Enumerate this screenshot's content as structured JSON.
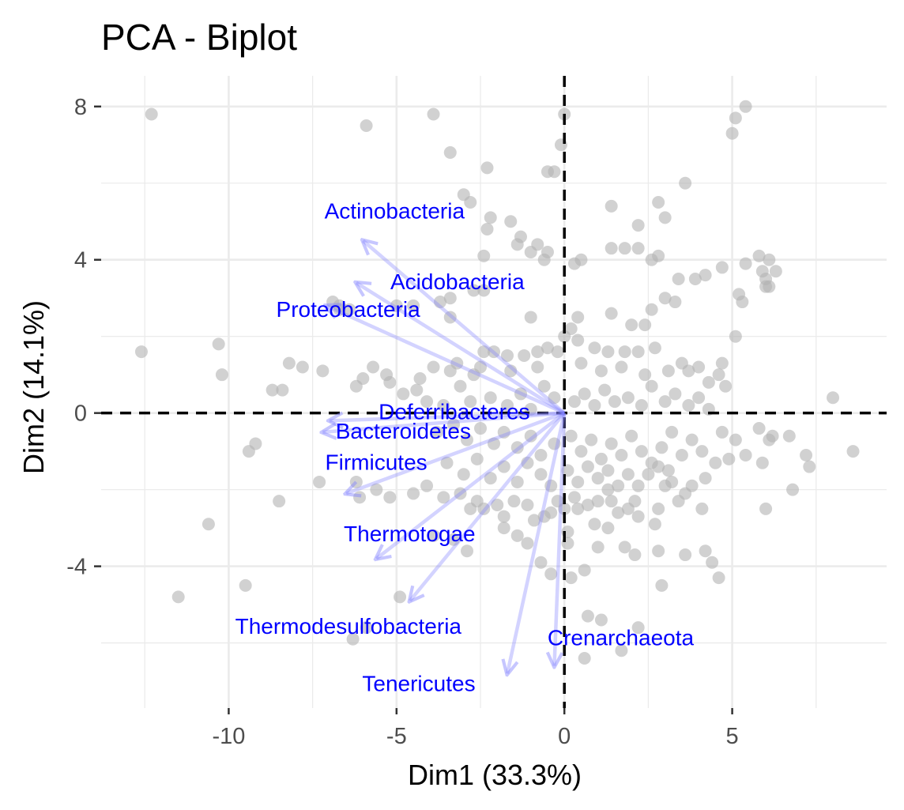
{
  "chart_data": {
    "type": "scatter",
    "title": "PCA - Biplot",
    "xlabel": "Dim1 (33.3%)",
    "ylabel": "Dim2 (14.1%)",
    "xlim": [
      -13.8,
      9.6
    ],
    "ylim": [
      -7.7,
      8.8
    ],
    "x_ticks": [
      -10,
      -5,
      0,
      5
    ],
    "y_ticks": [
      -4,
      0,
      4,
      8
    ],
    "x_tick_labels": [
      "-10",
      "-5",
      "0",
      "5"
    ],
    "y_tick_labels": [
      "-4",
      "0",
      "4",
      "8"
    ],
    "grid": true,
    "reference_lines": {
      "x": 0,
      "y": 0,
      "style": "dashed"
    },
    "colors": {
      "points": "#b3b3b3",
      "arrows": "#8080ff",
      "variable_labels": "#0000ff",
      "grid": "#ebebeb"
    },
    "variables": [
      {
        "name": "Actinobacteria",
        "x": -6.0,
        "y": 4.5
      },
      {
        "name": "Acidobacteria",
        "x": -6.2,
        "y": 3.4
      },
      {
        "name": "Proteobacteria",
        "x": -7.1,
        "y": 2.8
      },
      {
        "name": "Bacteroidetes",
        "x": -7.2,
        "y": -0.5
      },
      {
        "name": "Deferribacteres",
        "x": -7.0,
        "y": -0.2
      },
      {
        "name": "Firmicutes",
        "x": -6.5,
        "y": -2.1
      },
      {
        "name": "Thermotogae",
        "x": -5.6,
        "y": -3.8
      },
      {
        "name": "Thermodesulfobacteria",
        "x": -4.6,
        "y": -4.9
      },
      {
        "name": "Tenericutes",
        "x": -1.7,
        "y": -6.8
      },
      {
        "name": "Crenarchaeota",
        "x": -0.3,
        "y": -6.6
      }
    ],
    "points": [
      [
        -12.3,
        7.8
      ],
      [
        -5.9,
        7.5
      ],
      [
        -3.9,
        7.8
      ],
      [
        -3.4,
        6.8
      ],
      [
        -2.3,
        6.4
      ],
      [
        -0.5,
        6.3
      ],
      [
        -0.3,
        6.3
      ],
      [
        0.0,
        7.8
      ],
      [
        -0.1,
        7.0
      ],
      [
        5.1,
        7.7
      ],
      [
        5.4,
        8.0
      ],
      [
        5.0,
        7.3
      ],
      [
        3.6,
        6.0
      ],
      [
        1.4,
        5.4
      ],
      [
        2.8,
        5.5
      ],
      [
        3.0,
        5.1
      ],
      [
        2.2,
        4.9
      ],
      [
        -3.0,
        5.7
      ],
      [
        -2.8,
        5.5
      ],
      [
        -2.2,
        5.1
      ],
      [
        -1.6,
        5.0
      ],
      [
        -2.3,
        4.8
      ],
      [
        -1.3,
        4.6
      ],
      [
        -1.4,
        4.4
      ],
      [
        -1.0,
        4.2
      ],
      [
        -0.8,
        4.4
      ],
      [
        -0.5,
        4.2
      ],
      [
        -0.6,
        4.0
      ],
      [
        0.5,
        4.0
      ],
      [
        0.3,
        3.9
      ],
      [
        1.4,
        4.3
      ],
      [
        1.8,
        4.3
      ],
      [
        2.2,
        4.3
      ],
      [
        2.6,
        4.0
      ],
      [
        2.8,
        4.1
      ],
      [
        3.4,
        3.5
      ],
      [
        3.9,
        3.5
      ],
      [
        4.2,
        3.6
      ],
      [
        4.7,
        3.8
      ],
      [
        5.4,
        3.9
      ],
      [
        5.8,
        4.1
      ],
      [
        6.1,
        4.0
      ],
      [
        5.9,
        3.7
      ],
      [
        6.0,
        3.5
      ],
      [
        6.3,
        3.7
      ],
      [
        6.0,
        3.3
      ],
      [
        5.2,
        3.1
      ],
      [
        5.3,
        2.9
      ],
      [
        -4.5,
        2.8
      ],
      [
        -5.0,
        2.8
      ],
      [
        -3.4,
        3.0
      ],
      [
        -2.7,
        3.2
      ],
      [
        -2.4,
        3.2
      ],
      [
        -3.7,
        2.9
      ],
      [
        -1.0,
        2.5
      ],
      [
        -6.7,
        2.8
      ],
      [
        -6.9,
        2.9
      ],
      [
        -6.7,
        2.7
      ],
      [
        -6.4,
        2.7
      ],
      [
        -12.6,
        1.6
      ],
      [
        -10.3,
        1.8
      ],
      [
        -10.2,
        1.0
      ],
      [
        -8.2,
        1.3
      ],
      [
        -7.8,
        1.2
      ],
      [
        -7.2,
        1.1
      ],
      [
        -6.0,
        0.9
      ],
      [
        -6.2,
        0.7
      ],
      [
        -8.7,
        0.6
      ],
      [
        -8.4,
        0.6
      ],
      [
        -5.7,
        1.2
      ],
      [
        -5.3,
        1.0
      ],
      [
        -5.2,
        0.8
      ],
      [
        -4.4,
        0.6
      ],
      [
        -3.4,
        1.1
      ],
      [
        -3.2,
        1.3
      ],
      [
        -3.1,
        0.7
      ],
      [
        -2.5,
        1.2
      ],
      [
        -2.4,
        1.6
      ],
      [
        -2.1,
        1.6
      ],
      [
        -1.7,
        1.5
      ],
      [
        -1.2,
        1.5
      ],
      [
        -0.8,
        1.6
      ],
      [
        -0.5,
        1.7
      ],
      [
        -0.2,
        1.6
      ],
      [
        0.0,
        2.0
      ],
      [
        0.4,
        1.9
      ],
      [
        0.9,
        1.7
      ],
      [
        1.3,
        1.6
      ],
      [
        1.8,
        1.6
      ],
      [
        2.2,
        1.6
      ],
      [
        2.7,
        1.7
      ],
      [
        2.0,
        2.3
      ],
      [
        2.4,
        2.3
      ],
      [
        2.6,
        2.7
      ],
      [
        3.0,
        3.0
      ],
      [
        3.3,
        2.9
      ],
      [
        3.5,
        1.3
      ],
      [
        3.7,
        1.1
      ],
      [
        4.0,
        1.2
      ],
      [
        4.6,
        1.0
      ],
      [
        4.7,
        1.3
      ],
      [
        4.8,
        0.7
      ],
      [
        5.1,
        2.0
      ],
      [
        6.1,
        3.3
      ],
      [
        8.0,
        0.4
      ],
      [
        8.6,
        -1.0
      ],
      [
        7.2,
        -1.1
      ],
      [
        7.3,
        -1.4
      ],
      [
        6.8,
        -2.0
      ],
      [
        6.7,
        -0.6
      ],
      [
        6.1,
        -0.7
      ],
      [
        5.8,
        -0.4
      ],
      [
        6.2,
        -0.6
      ],
      [
        5.9,
        -1.3
      ],
      [
        6.0,
        -2.5
      ],
      [
        5.4,
        -1.1
      ],
      [
        5.1,
        -0.7
      ],
      [
        4.7,
        -0.5
      ],
      [
        4.9,
        -1.2
      ],
      [
        4.5,
        -1.3
      ],
      [
        4.2,
        -1.7
      ],
      [
        4.1,
        -2.5
      ],
      [
        3.8,
        -1.9
      ],
      [
        3.6,
        -2.1
      ],
      [
        3.4,
        -2.3
      ],
      [
        3.2,
        -1.8
      ],
      [
        3.0,
        -1.9
      ],
      [
        2.8,
        -2.5
      ],
      [
        2.7,
        -2.9
      ],
      [
        2.2,
        -2.7
      ],
      [
        2.1,
        -2.3
      ],
      [
        1.9,
        -2.5
      ],
      [
        1.6,
        -2.6
      ],
      [
        1.4,
        -2.3
      ],
      [
        1.3,
        -2.0
      ],
      [
        1.0,
        -2.3
      ],
      [
        0.9,
        -2.9
      ],
      [
        0.7,
        -2.4
      ],
      [
        0.4,
        -2.5
      ],
      [
        0.3,
        -2.2
      ],
      [
        0.0,
        -2.5
      ],
      [
        -0.2,
        -2.3
      ],
      [
        -0.4,
        -2.6
      ],
      [
        -0.6,
        -2.7
      ],
      [
        -0.9,
        -2.8
      ],
      [
        -1.1,
        -2.4
      ],
      [
        -1.5,
        -2.3
      ],
      [
        -1.8,
        -2.7
      ],
      [
        -2.0,
        -2.4
      ],
      [
        -2.4,
        -2.5
      ],
      [
        -2.6,
        -2.3
      ],
      [
        -2.8,
        -2.5
      ],
      [
        -3.1,
        -2.1
      ],
      [
        -3.6,
        -2.2
      ],
      [
        -4.1,
        -1.9
      ],
      [
        -4.5,
        -2.1
      ],
      [
        -5.2,
        -2.2
      ],
      [
        -5.6,
        -2.0
      ],
      [
        -6.1,
        -2.2
      ],
      [
        -6.2,
        -1.8
      ],
      [
        -7.3,
        -1.8
      ],
      [
        -9.2,
        -0.8
      ],
      [
        -9.4,
        -1.0
      ],
      [
        -8.5,
        -2.3
      ],
      [
        -9.5,
        -4.5
      ],
      [
        -10.6,
        -2.9
      ],
      [
        -11.5,
        -4.8
      ],
      [
        -5.9,
        -5.6
      ],
      [
        -6.3,
        -5.9
      ],
      [
        -4.9,
        -4.8
      ],
      [
        -3.9,
        -3.2
      ],
      [
        -3.3,
        -3.3
      ],
      [
        -2.9,
        -3.6
      ],
      [
        -1.8,
        -3.0
      ],
      [
        -1.4,
        -3.2
      ],
      [
        -1.1,
        -3.4
      ],
      [
        -0.7,
        -3.9
      ],
      [
        -0.4,
        -4.2
      ],
      [
        0.1,
        -3.1
      ],
      [
        0.1,
        -3.4
      ],
      [
        0.2,
        -4.3
      ],
      [
        0.6,
        -4.1
      ],
      [
        1.3,
        -3.0
      ],
      [
        1.8,
        -3.5
      ],
      [
        2.1,
        -3.7
      ],
      [
        1.0,
        -3.5
      ],
      [
        0.7,
        -5.3
      ],
      [
        1.1,
        -5.4
      ],
      [
        0.6,
        -6.4
      ],
      [
        1.7,
        -6.2
      ],
      [
        2.2,
        -5.6
      ],
      [
        2.9,
        -4.5
      ],
      [
        3.6,
        -3.7
      ],
      [
        4.2,
        -3.6
      ],
      [
        4.6,
        -4.3
      ],
      [
        4.4,
        -3.9
      ],
      [
        2.8,
        -3.6
      ],
      [
        -4.8,
        0.5
      ],
      [
        -4.1,
        0.3
      ],
      [
        -3.6,
        0.2
      ],
      [
        -2.8,
        0.3
      ],
      [
        -2.2,
        0.4
      ],
      [
        -1.7,
        0.2
      ],
      [
        -1.3,
        0.5
      ],
      [
        -1.0,
        0.1
      ],
      [
        -0.6,
        0.7
      ],
      [
        -0.3,
        0.4
      ],
      [
        0.3,
        0.3
      ],
      [
        0.6,
        0.5
      ],
      [
        0.9,
        0.2
      ],
      [
        1.2,
        0.6
      ],
      [
        1.5,
        0.3
      ],
      [
        1.9,
        0.4
      ],
      [
        2.3,
        0.2
      ],
      [
        2.6,
        0.7
      ],
      [
        3.0,
        0.3
      ],
      [
        3.3,
        0.5
      ],
      [
        3.7,
        0.2
      ],
      [
        4.0,
        0.4
      ],
      [
        4.3,
        0.1
      ],
      [
        -3.8,
        -0.5
      ],
      [
        -3.3,
        -0.3
      ],
      [
        -2.9,
        -0.7
      ],
      [
        -2.5,
        -0.4
      ],
      [
        -2.1,
        -0.8
      ],
      [
        -1.8,
        -0.5
      ],
      [
        -1.4,
        -0.9
      ],
      [
        -1.0,
        -0.6
      ],
      [
        -0.7,
        -1.1
      ],
      [
        -0.3,
        -0.8
      ],
      [
        0.2,
        -0.6
      ],
      [
        0.5,
        -1.0
      ],
      [
        0.8,
        -0.7
      ],
      [
        1.1,
        -1.2
      ],
      [
        1.4,
        -0.8
      ],
      [
        1.7,
        -1.1
      ],
      [
        2.0,
        -0.6
      ],
      [
        2.3,
        -1.0
      ],
      [
        2.6,
        -1.3
      ],
      [
        2.9,
        -0.9
      ],
      [
        3.2,
        -0.5
      ],
      [
        3.5,
        -1.1
      ],
      [
        3.8,
        -0.7
      ],
      [
        4.1,
        -1.0
      ],
      [
        -3.5,
        -1.3
      ],
      [
        -3.0,
        -1.6
      ],
      [
        -2.6,
        -1.2
      ],
      [
        -2.2,
        -1.7
      ],
      [
        -1.8,
        -1.4
      ],
      [
        -1.4,
        -1.8
      ],
      [
        -1.1,
        -1.3
      ],
      [
        -0.7,
        -1.6
      ],
      [
        -0.4,
        -1.9
      ],
      [
        0.1,
        -1.5
      ],
      [
        0.4,
        -1.8
      ],
      [
        0.7,
        -1.4
      ],
      [
        1.0,
        -1.7
      ],
      [
        1.3,
        -1.5
      ],
      [
        1.6,
        -1.9
      ],
      [
        1.9,
        -1.6
      ],
      [
        2.2,
        -1.9
      ],
      [
        2.5,
        -1.6
      ],
      [
        2.8,
        -1.4
      ],
      [
        3.1,
        -1.5
      ],
      [
        -4.3,
        0.9
      ],
      [
        -3.9,
        1.2
      ],
      [
        -2.7,
        1.0
      ],
      [
        -1.6,
        1.1
      ],
      [
        -0.8,
        1.2
      ],
      [
        0.5,
        1.3
      ],
      [
        1.1,
        1.1
      ],
      [
        1.7,
        1.2
      ],
      [
        2.4,
        1.0
      ],
      [
        3.1,
        1.1
      ],
      [
        4.3,
        0.8
      ],
      [
        0.4,
        2.5
      ],
      [
        0.2,
        2.2
      ],
      [
        1.4,
        2.6
      ],
      [
        -2.4,
        4.1
      ],
      [
        -3.4,
        2.5
      ]
    ]
  }
}
